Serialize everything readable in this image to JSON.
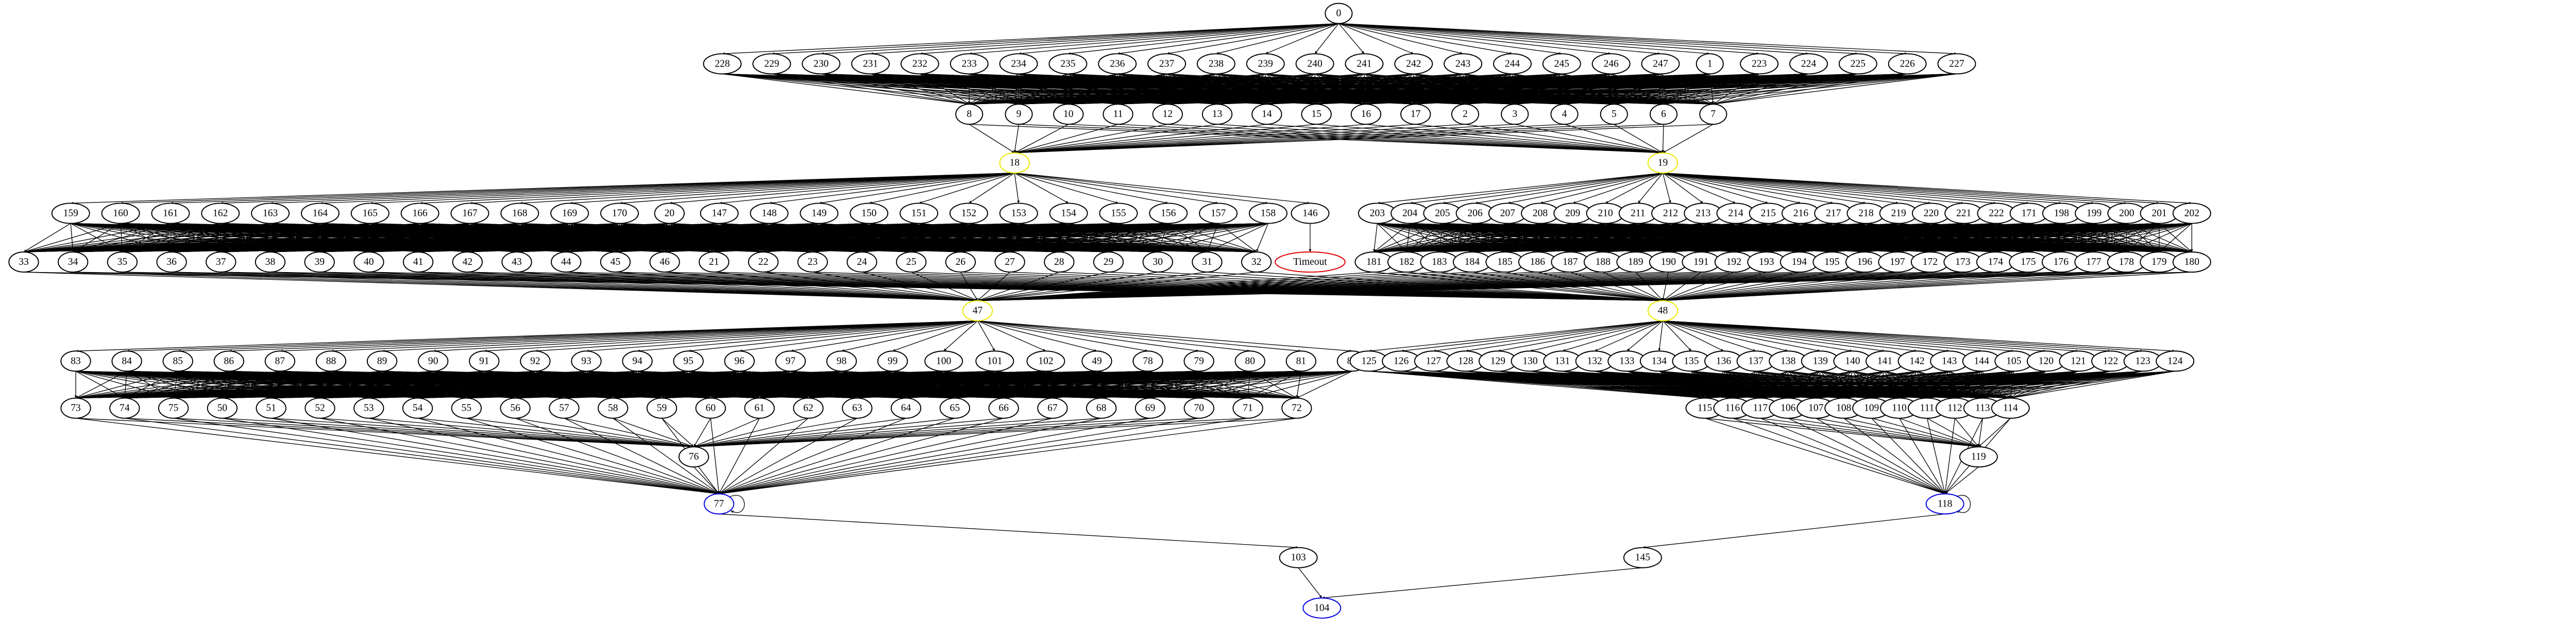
{
  "root": "0",
  "tier1": [
    "228",
    "229",
    "230",
    "231",
    "232",
    "233",
    "234",
    "235",
    "236",
    "237",
    "238",
    "239",
    "240",
    "241",
    "242",
    "243",
    "244",
    "245",
    "246",
    "247",
    "1",
    "223",
    "224",
    "225",
    "226",
    "227"
  ],
  "tier2": [
    "8",
    "9",
    "10",
    "11",
    "12",
    "13",
    "14",
    "15",
    "16",
    "17",
    "2",
    "3",
    "4",
    "5",
    "6",
    "7"
  ],
  "upper_hubs": [
    "18",
    "19"
  ],
  "upper_groups": [
    {
      "outer": [
        "159",
        "160",
        "161",
        "162",
        "163",
        "164",
        "165",
        "166",
        "167",
        "168",
        "169",
        "170",
        "20",
        "147",
        "148",
        "149",
        "150",
        "151",
        "152",
        "153",
        "154",
        "155",
        "156",
        "157",
        "158"
      ],
      "inner": [
        "33",
        "34",
        "35",
        "36",
        "37",
        "38",
        "39",
        "40",
        "41",
        "42",
        "43",
        "44",
        "45",
        "46",
        "21",
        "22",
        "23",
        "24",
        "25",
        "26",
        "27",
        "28",
        "29",
        "30",
        "31",
        "32"
      ]
    },
    {
      "outer": [
        "203",
        "204",
        "205",
        "206",
        "207",
        "208",
        "209",
        "210",
        "211",
        "212",
        "213",
        "214",
        "215",
        "216",
        "217",
        "218",
        "219",
        "220",
        "221",
        "222",
        "171",
        "198",
        "199",
        "200",
        "201",
        "202"
      ],
      "inner": [
        "181",
        "182",
        "183",
        "184",
        "185",
        "186",
        "187",
        "188",
        "189",
        "190",
        "191",
        "192",
        "193",
        "194",
        "195",
        "196",
        "197",
        "172",
        "173",
        "174",
        "175",
        "176",
        "177",
        "178",
        "179",
        "180"
      ]
    }
  ],
  "timeout": {
    "from": "146",
    "label": "Timeout"
  },
  "lower_hubs": [
    "47",
    "48"
  ],
  "lower_groups": [
    {
      "outer": [
        "83",
        "84",
        "85",
        "86",
        "87",
        "88",
        "89",
        "90",
        "91",
        "92",
        "93",
        "94",
        "95",
        "96",
        "97",
        "98",
        "99",
        "100",
        "101",
        "102",
        "49",
        "78",
        "79",
        "80",
        "81",
        "82"
      ],
      "inner": [
        "73",
        "74",
        "75",
        "50",
        "51",
        "52",
        "53",
        "54",
        "55",
        "56",
        "57",
        "58",
        "59",
        "60",
        "61",
        "62",
        "63",
        "64",
        "65",
        "66",
        "67",
        "68",
        "69",
        "70",
        "71",
        "72"
      ],
      "sink": "76",
      "end": "77",
      "exit": "103"
    },
    {
      "outer": [
        "125",
        "126",
        "127",
        "128",
        "129",
        "130",
        "131",
        "132",
        "133",
        "134",
        "135",
        "136",
        "137",
        "138",
        "139",
        "140",
        "141",
        "142",
        "143",
        "144",
        "105",
        "120",
        "121",
        "122",
        "123",
        "124"
      ],
      "inner": [
        "115",
        "116",
        "117",
        "106",
        "107",
        "108",
        "109",
        "110",
        "111",
        "112",
        "113",
        "114"
      ],
      "sink": "119",
      "end": "118",
      "exit": "145"
    }
  ],
  "final": "104"
}
